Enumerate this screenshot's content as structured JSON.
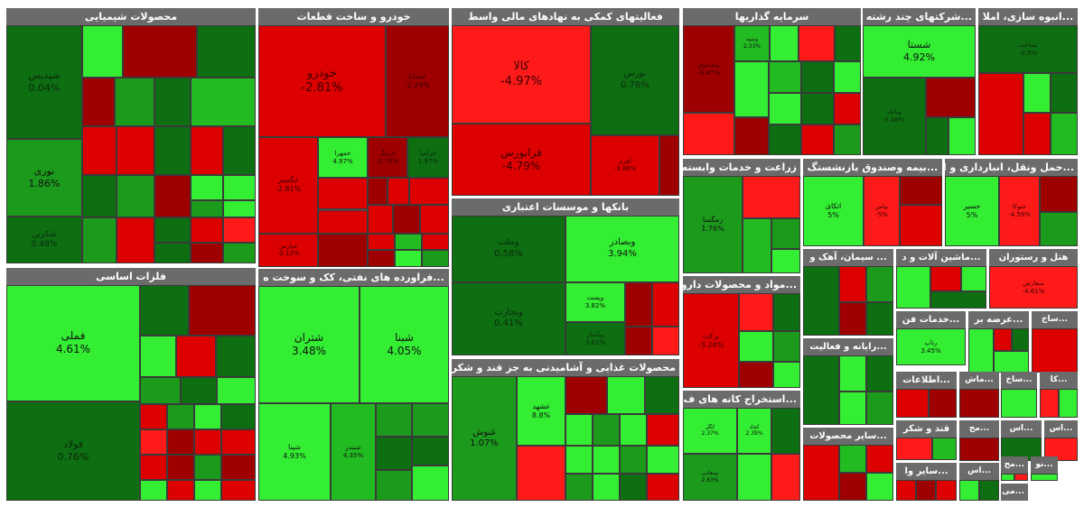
{
  "palette": {
    "bright_green": "#33ee33",
    "green": "#22bb22",
    "mid_green": "#1c9a1c",
    "dark_green": "#0d6e12",
    "bright_red": "#ff1a1a",
    "red": "#dd0000",
    "dark_red": "#9e0000",
    "header_bg": "#6b6b6b"
  },
  "sectors": [
    {
      "id": "chemical",
      "title": "محصولات شیمیایی",
      "named_tiles": [
        {
          "name": "شپدیس",
          "pct": "0.04%"
        },
        {
          "name": "نوری",
          "pct": "1.86%"
        },
        {
          "name": "شکربن",
          "pct": "0.48%"
        }
      ]
    },
    {
      "id": "auto",
      "title": "خودرو و ساخت قطعات",
      "named_tiles": [
        {
          "name": "خودرو",
          "pct": "-2.81%"
        },
        {
          "name": "خساپا",
          "pct": "-2.29%"
        },
        {
          "name": "خگستر",
          "pct": "-2.81%"
        },
        {
          "name": "خمهرا",
          "pct": "4.97%"
        },
        {
          "name": "خرینگ",
          "pct": "-2.76%"
        },
        {
          "name": "خپارس",
          "pct": "-3.13%"
        },
        {
          "name": "خزامیا",
          "pct": "1.97%"
        }
      ]
    },
    {
      "id": "financial",
      "title": "فعالیتهای کمکی به نهادهای مالی واسط",
      "named_tiles": [
        {
          "name": "کالا",
          "pct": "-4.97%"
        },
        {
          "name": "نورس",
          "pct": "0.76%"
        },
        {
          "name": "فرابورس",
          "pct": "-4.79%"
        },
        {
          "name": "اهرم",
          "pct": "-3.86%"
        }
      ]
    },
    {
      "id": "investment",
      "title": "سرمایه گذاریها",
      "named_tiles": [
        {
          "name": "وصندوق",
          "pct": "-0.47%"
        },
        {
          "name": "وسپه",
          "pct": "2.33%"
        }
      ]
    },
    {
      "id": "multi",
      "title": "...شرکتهای چند رشته",
      "named_tiles": [
        {
          "name": "شستا",
          "pct": "4.92%"
        },
        {
          "name": "وبانک",
          "pct": "0.48%"
        }
      ]
    },
    {
      "id": "construction",
      "title": "...انبوه سازی، املا",
      "named_tiles": [
        {
          "name": "ثساخت",
          "pct": "-0.9%"
        }
      ]
    },
    {
      "id": "metals",
      "title": "فلزات اساسی",
      "named_tiles": [
        {
          "name": "فملی",
          "pct": "4.61%"
        },
        {
          "name": "فولاد",
          "pct": "0.76%"
        }
      ]
    },
    {
      "id": "petroleum",
      "title": "...فراورده های نفتی، کک و سوخت ه",
      "named_tiles": [
        {
          "name": "شتران",
          "pct": "3.48%"
        },
        {
          "name": "شبنا",
          "pct": "4.05%"
        },
        {
          "name": "شپنا",
          "pct": "4.93%"
        },
        {
          "name": "شبندر",
          "pct": "4.35%"
        }
      ]
    },
    {
      "id": "banks",
      "title": "بانکها و موسسات اعتباری",
      "named_tiles": [
        {
          "name": "وملت",
          "pct": "0.58%"
        },
        {
          "name": "وبصادر",
          "pct": "3.94%"
        },
        {
          "name": "وتجارت",
          "pct": "0.41%"
        },
        {
          "name": "وپست",
          "pct": "3.82%"
        },
        {
          "name": "وپاسار",
          "pct": "3.61%"
        }
      ]
    },
    {
      "id": "food",
      "title": "محصولات غذایی و آشامیدنی به جز قند و شکر",
      "named_tiles": [
        {
          "name": "غنوش",
          "pct": "1.07%"
        },
        {
          "name": "غشهد",
          "pct": "8.8%"
        }
      ]
    },
    {
      "id": "agriculture",
      "title": "زراعت و خدمات وابسته",
      "named_tiles": [
        {
          "name": "زمگسا",
          "pct": "1.76%"
        }
      ]
    },
    {
      "id": "insurance",
      "title": "...بیمه وصندوق بازنشستگ",
      "named_tiles": [
        {
          "name": "اتکای",
          "pct": "5%"
        },
        {
          "name": "بپاس",
          "pct": "-5%"
        }
      ]
    },
    {
      "id": "transport",
      "title": "...حمل ونقل، انبارداری و ا",
      "named_tiles": [
        {
          "name": "حسیر",
          "pct": "5%"
        },
        {
          "name": "حتوکا",
          "pct": "-4.59%"
        }
      ]
    },
    {
      "id": "cement",
      "title": "... سیمان، آهک و",
      "named_tiles": []
    },
    {
      "id": "machinery",
      "title": "...ماشین آلات و د",
      "named_tiles": []
    },
    {
      "id": "hotel",
      "title": "هتل و رستوران",
      "named_tiles": [
        {
          "name": "سفارس",
          "pct": "-4.61%"
        }
      ]
    },
    {
      "id": "pharma",
      "title": "...مواد و محصولات دارو",
      "named_tiles": [
        {
          "name": "برکت",
          "pct": "-3.24%"
        }
      ]
    },
    {
      "id": "computer",
      "title": "...رایانه و فعالیت",
      "named_tiles": []
    },
    {
      "id": "services",
      "title": "...خدمات فن",
      "named_tiles": [
        {
          "name": "رتاپ",
          "pct": "3.45%"
        }
      ]
    },
    {
      "id": "supply",
      "title": "...عرضه بر",
      "named_tiles": []
    },
    {
      "id": "sah1",
      "title": "...ساخ",
      "named_tiles": []
    },
    {
      "id": "mining",
      "title": "...استخراج کانه های ف",
      "named_tiles": [
        {
          "name": "کگل",
          "pct": "2.37%"
        },
        {
          "name": "کچاد",
          "pct": "2.39%"
        },
        {
          "name": "ومعادن",
          "pct": "2.83%"
        }
      ]
    },
    {
      "id": "info",
      "title": "...اطلاعات",
      "named_tiles": []
    },
    {
      "id": "mas",
      "title": "...ماش",
      "named_tiles": []
    },
    {
      "id": "sah2",
      "title": "...ساخ",
      "named_tiles": []
    },
    {
      "id": "ka",
      "title": "...کا",
      "named_tiles": []
    },
    {
      "id": "sugar",
      "title": "قند و شکر",
      "named_tiles": []
    },
    {
      "id": "mah",
      "title": "...مح",
      "named_tiles": []
    },
    {
      "id": "as1",
      "title": "...اس",
      "named_tiles": []
    },
    {
      "id": "as2",
      "title": "...اس",
      "named_tiles": []
    },
    {
      "id": "other_products",
      "title": "...سایر محصولات",
      "named_tiles": []
    },
    {
      "id": "other2",
      "title": "...سایر وا",
      "named_tiles": []
    },
    {
      "id": "as3",
      "title": "...اس",
      "named_tiles": []
    },
    {
      "id": "mah2",
      "title": "...مح",
      "named_tiles": []
    },
    {
      "id": "no",
      "title": "...نو",
      "named_tiles": []
    },
    {
      "id": "mn",
      "title": "...می",
      "named_tiles": []
    }
  ]
}
